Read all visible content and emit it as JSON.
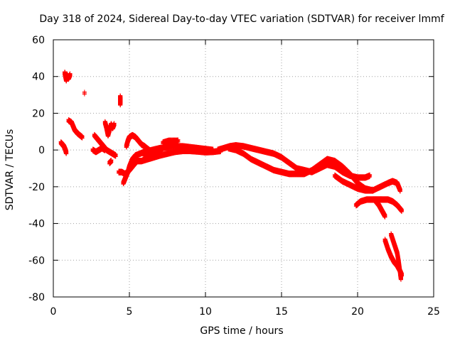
{
  "chart_data": {
    "type": "scatter",
    "title": "Day 318 of 2024, Sidereal Day-to-day VTEC variation (SDTVAR) for receiver lmmf",
    "xlabel": "GPS time / hours",
    "ylabel": "SDTVAR / TECUs",
    "xlim": [
      0,
      25
    ],
    "ylim": [
      -80,
      60
    ],
    "xticks": [
      "0",
      "5",
      "10",
      "15",
      "20",
      "25"
    ],
    "yticks": [
      "60",
      "40",
      "20",
      "0",
      "-20",
      "-40",
      "-60",
      "-80"
    ],
    "xtick_values": [
      0,
      5,
      10,
      15,
      20,
      25
    ],
    "ytick_values": [
      60,
      40,
      20,
      0,
      -20,
      -40,
      -60,
      -80
    ],
    "grid": true,
    "marker": "+",
    "color": "#ff0000",
    "series": [
      {
        "name": "s1",
        "points": [
          [
            0.5,
            4
          ],
          [
            0.6,
            3
          ],
          [
            0.7,
            2
          ],
          [
            0.8,
            0
          ],
          [
            0.85,
            -1.5
          ]
        ]
      },
      {
        "name": "s2",
        "points": [
          [
            0.75,
            42
          ],
          [
            0.8,
            40
          ],
          [
            0.85,
            38
          ],
          [
            0.9,
            41
          ],
          [
            1.0,
            39
          ],
          [
            1.05,
            40
          ],
          [
            1.1,
            41
          ]
        ]
      },
      {
        "name": "s3",
        "points": [
          [
            1.0,
            16
          ],
          [
            1.2,
            15
          ],
          [
            1.4,
            11
          ],
          [
            1.6,
            9
          ],
          [
            1.9,
            7
          ]
        ]
      },
      {
        "name": "s4",
        "points": [
          [
            2.05,
            31
          ]
        ]
      },
      {
        "name": "s5",
        "points": [
          [
            2.6,
            0
          ],
          [
            2.8,
            -1
          ],
          [
            3.0,
            0
          ],
          [
            3.2,
            1
          ],
          [
            3.4,
            0
          ]
        ]
      },
      {
        "name": "s6",
        "points": [
          [
            2.7,
            8
          ],
          [
            2.9,
            6
          ],
          [
            3.1,
            4
          ],
          [
            3.3,
            2
          ],
          [
            3.5,
            0
          ],
          [
            3.7,
            -1
          ],
          [
            3.9,
            -2
          ],
          [
            4.1,
            -3
          ]
        ]
      },
      {
        "name": "s7",
        "points": [
          [
            3.4,
            15
          ],
          [
            3.5,
            12
          ],
          [
            3.55,
            10
          ],
          [
            3.6,
            8
          ],
          [
            3.8,
            14
          ],
          [
            3.9,
            12
          ],
          [
            4.0,
            14
          ]
        ]
      },
      {
        "name": "s8",
        "points": [
          [
            3.7,
            -7
          ],
          [
            3.8,
            -6
          ]
        ]
      },
      {
        "name": "s9",
        "points": [
          [
            4.4,
            29
          ],
          [
            4.4,
            27
          ],
          [
            4.4,
            25
          ]
        ]
      },
      {
        "name": "s10",
        "points": [
          [
            4.3,
            -12
          ],
          [
            4.5,
            -12
          ],
          [
            4.7,
            -13
          ],
          [
            4.9,
            -12
          ],
          [
            5.1,
            -10
          ],
          [
            5.3,
            -8
          ],
          [
            5.5,
            -6
          ],
          [
            5.8,
            -6
          ],
          [
            6.2,
            -5
          ],
          [
            6.6,
            -4
          ],
          [
            7.0,
            -3
          ],
          [
            7.5,
            -2
          ],
          [
            8.0,
            -1
          ],
          [
            8.5,
            -0.5
          ],
          [
            9.0,
            -0.5
          ],
          [
            9.5,
            -0.8
          ],
          [
            10.0,
            -1.2
          ],
          [
            10.5,
            -1
          ],
          [
            11.0,
            -0.5
          ]
        ]
      },
      {
        "name": "s11",
        "points": [
          [
            4.6,
            -18
          ],
          [
            4.7,
            -16
          ],
          [
            4.8,
            -14
          ],
          [
            4.9,
            -12
          ],
          [
            5.0,
            -9
          ],
          [
            5.1,
            -7
          ],
          [
            5.2,
            -5
          ],
          [
            5.4,
            -3
          ],
          [
            5.7,
            -2
          ],
          [
            6.0,
            -1
          ],
          [
            6.5,
            0
          ],
          [
            7.0,
            1
          ],
          [
            7.5,
            1.5
          ],
          [
            8.0,
            2
          ],
          [
            8.5,
            2
          ],
          [
            9.0,
            1.5
          ],
          [
            9.5,
            1
          ],
          [
            10.0,
            0.5
          ],
          [
            10.5,
            0
          ]
        ]
      },
      {
        "name": "s12",
        "points": [
          [
            4.8,
            2
          ],
          [
            4.9,
            5
          ],
          [
            5.0,
            7
          ],
          [
            5.2,
            8
          ],
          [
            5.4,
            7
          ],
          [
            5.6,
            5
          ],
          [
            5.8,
            3
          ],
          [
            6.0,
            2
          ],
          [
            6.3,
            0
          ],
          [
            6.6,
            -2
          ],
          [
            7.0,
            -3
          ]
        ]
      },
      {
        "name": "s13",
        "points": [
          [
            6.0,
            -4
          ],
          [
            6.5,
            -2
          ],
          [
            7.0,
            0
          ],
          [
            7.4,
            2
          ],
          [
            7.8,
            4
          ],
          [
            8.2,
            5
          ],
          [
            7.6,
            5
          ],
          [
            7.2,
            4
          ]
        ]
      },
      {
        "name": "s14",
        "points": [
          [
            10.8,
            0
          ],
          [
            11.2,
            1
          ],
          [
            11.6,
            2
          ],
          [
            12.0,
            2.5
          ],
          [
            12.5,
            2
          ],
          [
            13.0,
            1
          ],
          [
            13.5,
            0
          ],
          [
            14.0,
            -1
          ],
          [
            14.5,
            -2
          ],
          [
            15.0,
            -4
          ],
          [
            15.5,
            -7
          ],
          [
            16.0,
            -10
          ],
          [
            16.5,
            -11
          ],
          [
            17.0,
            -12
          ],
          [
            17.5,
            -10
          ],
          [
            18.0,
            -8
          ],
          [
            18.5,
            -9
          ],
          [
            19.0,
            -12
          ],
          [
            19.5,
            -14
          ],
          [
            20.0,
            -15
          ],
          [
            20.5,
            -15
          ],
          [
            20.8,
            -14
          ]
        ]
      },
      {
        "name": "s15",
        "points": [
          [
            11.5,
            1
          ],
          [
            12.0,
            0
          ],
          [
            12.5,
            -2
          ],
          [
            13.0,
            -5
          ],
          [
            13.5,
            -7
          ],
          [
            14.0,
            -9
          ],
          [
            14.5,
            -11
          ],
          [
            15.0,
            -12
          ],
          [
            15.5,
            -13
          ],
          [
            16.0,
            -13
          ],
          [
            16.5,
            -13
          ],
          [
            17.0,
            -11
          ],
          [
            17.5,
            -8
          ],
          [
            18.0,
            -5
          ],
          [
            18.5,
            -6
          ],
          [
            19.0,
            -9
          ],
          [
            19.5,
            -13
          ],
          [
            20.0,
            -18
          ],
          [
            20.5,
            -21
          ],
          [
            21.0,
            -22
          ],
          [
            21.5,
            -20
          ],
          [
            22.0,
            -18
          ],
          [
            22.3,
            -17
          ],
          [
            22.6,
            -18
          ],
          [
            22.8,
            -22
          ]
        ]
      },
      {
        "name": "s16",
        "points": [
          [
            18.5,
            -14
          ],
          [
            19.0,
            -17
          ],
          [
            19.5,
            -19
          ],
          [
            20.0,
            -21
          ],
          [
            20.5,
            -22
          ],
          [
            21.0,
            -22
          ]
        ]
      },
      {
        "name": "s17",
        "points": [
          [
            19.9,
            -30
          ],
          [
            20.2,
            -28
          ],
          [
            20.6,
            -27
          ],
          [
            21.0,
            -27
          ],
          [
            21.3,
            -27
          ],
          [
            21.6,
            -27
          ],
          [
            22.0,
            -27
          ],
          [
            22.3,
            -28
          ],
          [
            22.6,
            -30
          ],
          [
            22.9,
            -33
          ]
        ]
      },
      {
        "name": "s18",
        "points": [
          [
            21.2,
            -28
          ],
          [
            21.4,
            -30
          ],
          [
            21.6,
            -33
          ],
          [
            21.8,
            -36
          ]
        ]
      },
      {
        "name": "s19",
        "points": [
          [
            21.8,
            -49
          ],
          [
            22.0,
            -54
          ],
          [
            22.2,
            -58
          ],
          [
            22.4,
            -61
          ],
          [
            22.6,
            -63
          ],
          [
            22.8,
            -66
          ],
          [
            22.9,
            -68
          ]
        ]
      },
      {
        "name": "s20",
        "points": [
          [
            22.2,
            -46
          ],
          [
            22.4,
            -51
          ],
          [
            22.6,
            -56
          ],
          [
            22.7,
            -61
          ],
          [
            22.8,
            -67
          ],
          [
            22.85,
            -70
          ]
        ]
      }
    ]
  }
}
